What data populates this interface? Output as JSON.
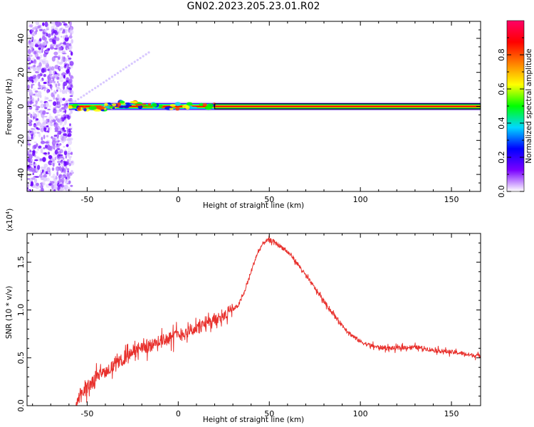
{
  "title": "GN02.2023.205.23.01.R02",
  "chart_data": [
    {
      "type": "heatmap",
      "name": "spectrogram",
      "xlabel": "Height of straight line (km)",
      "ylabel": "Frequency (Hz)",
      "xlim": [
        -83,
        166
      ],
      "ylim": [
        -50,
        50
      ],
      "xticks": [
        -50,
        0,
        50,
        100,
        150
      ],
      "yticks": [
        -40,
        -20,
        0,
        20,
        40
      ],
      "colorbar": {
        "label": "Normalized spectral amplitude",
        "range": [
          0,
          1
        ],
        "ticks": [
          "0.0",
          "0.2",
          "0.4",
          "0.6",
          "0.8"
        ],
        "stops": [
          "#ffffff",
          "#7a00ff",
          "#0000ff",
          "#00d8ff",
          "#00ff00",
          "#ffff00",
          "#ff8000",
          "#ff0000",
          "#ff0066"
        ]
      },
      "carrier_band": {
        "x_start": -60,
        "x_end": 166,
        "freq": 0.0
      }
    },
    {
      "type": "line",
      "name": "snr",
      "xlabel": "Height of straight line (km)",
      "ylabel": "SNR (10 * v/v)",
      "y_multiplier": "(x10",
      "y_multiplier_exp": "4",
      "xlim": [
        -83,
        166
      ],
      "ylim": [
        0,
        1.8
      ],
      "xticks": [
        -50,
        0,
        50,
        100,
        150
      ],
      "yticks": [
        "0.0",
        "0.5",
        "1.0",
        "1.5"
      ],
      "color": "#e8302c",
      "series": [
        {
          "x": [
            -83,
            -60,
            -56,
            -54,
            -50,
            -45,
            -40,
            -35,
            -30,
            -25,
            -20,
            -15,
            -10,
            -5,
            0,
            5,
            10,
            15,
            20,
            25,
            30,
            33,
            36,
            40,
            43,
            46,
            48,
            50,
            52,
            55,
            58,
            62,
            66,
            70,
            75,
            80,
            85,
            90,
            95,
            100,
            105,
            110,
            115,
            120,
            125,
            130,
            135,
            140,
            145,
            150,
            155,
            160,
            166
          ],
          "y": [
            0.0,
            0.0,
            0.0,
            0.1,
            0.2,
            0.3,
            0.36,
            0.42,
            0.49,
            0.56,
            0.6,
            0.63,
            0.68,
            0.71,
            0.74,
            0.77,
            0.81,
            0.85,
            0.9,
            0.95,
            1.0,
            1.05,
            1.17,
            1.4,
            1.57,
            1.68,
            1.72,
            1.73,
            1.72,
            1.68,
            1.64,
            1.57,
            1.47,
            1.36,
            1.23,
            1.09,
            0.96,
            0.84,
            0.74,
            0.67,
            0.63,
            0.61,
            0.6,
            0.6,
            0.61,
            0.61,
            0.6,
            0.58,
            0.57,
            0.56,
            0.55,
            0.53,
            0.52
          ]
        }
      ]
    }
  ]
}
